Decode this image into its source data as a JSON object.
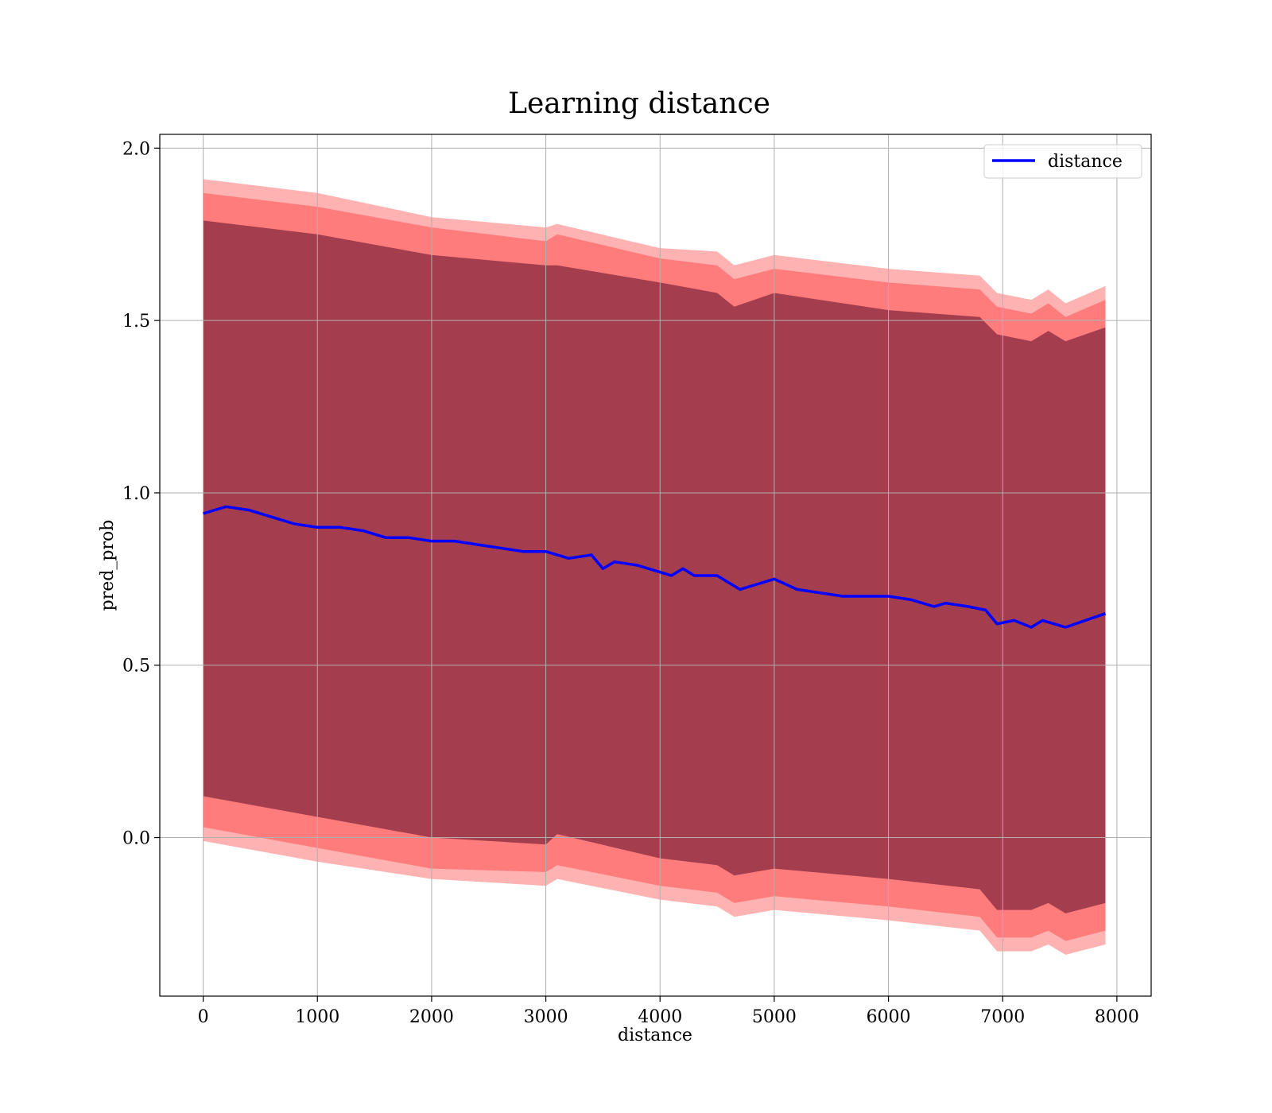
{
  "chart_data": {
    "type": "line",
    "title": "Learning distance",
    "xlabel": "distance",
    "ylabel": "pred_prob",
    "xlim": [
      -380,
      8300
    ],
    "ylim": [
      -0.46,
      2.04
    ],
    "x_ticks": [
      0,
      1000,
      2000,
      3000,
      4000,
      5000,
      6000,
      7000,
      8000
    ],
    "y_ticks": [
      0.0,
      0.5,
      1.0,
      1.5,
      2.0
    ],
    "x_tick_labels": [
      "0",
      "1000",
      "2000",
      "3000",
      "4000",
      "5000",
      "6000",
      "7000",
      "8000"
    ],
    "y_tick_labels": [
      "0.0",
      "0.5",
      "1.0",
      "1.5",
      "2.0"
    ],
    "grid": true,
    "legend": {
      "position": "top-right",
      "entries": [
        "distance"
      ]
    },
    "series": [
      {
        "name": "distance",
        "color": "#0000ff",
        "x": [
          0,
          200,
          400,
          600,
          800,
          1000,
          1200,
          1400,
          1600,
          1800,
          2000,
          2200,
          2400,
          2600,
          2800,
          3000,
          3200,
          3400,
          3500,
          3600,
          3800,
          4000,
          4100,
          4200,
          4300,
          4500,
          4600,
          4700,
          4800,
          5000,
          5200,
          5400,
          5600,
          5800,
          6000,
          6200,
          6400,
          6500,
          6700,
          6850,
          6950,
          7100,
          7250,
          7350,
          7550,
          7900
        ],
        "y": [
          0.94,
          0.96,
          0.95,
          0.93,
          0.91,
          0.9,
          0.9,
          0.89,
          0.87,
          0.87,
          0.86,
          0.86,
          0.85,
          0.84,
          0.83,
          0.83,
          0.81,
          0.82,
          0.78,
          0.8,
          0.79,
          0.77,
          0.76,
          0.78,
          0.76,
          0.76,
          0.74,
          0.72,
          0.73,
          0.75,
          0.72,
          0.71,
          0.7,
          0.7,
          0.7,
          0.69,
          0.67,
          0.68,
          0.67,
          0.66,
          0.62,
          0.63,
          0.61,
          0.63,
          0.61,
          0.65
        ]
      }
    ],
    "bands": [
      {
        "color": "#ff0000",
        "opacity": 0.3,
        "x": [
          0,
          1000,
          2000,
          3000,
          3100,
          4000,
          4500,
          4650,
          5000,
          6000,
          6800,
          6950,
          7250,
          7400,
          7550,
          7900
        ],
        "upper": [
          1.91,
          1.87,
          1.8,
          1.77,
          1.78,
          1.71,
          1.7,
          1.66,
          1.69,
          1.65,
          1.63,
          1.58,
          1.56,
          1.59,
          1.55,
          1.6
        ],
        "lower": [
          -0.01,
          -0.07,
          -0.12,
          -0.14,
          -0.12,
          -0.18,
          -0.2,
          -0.23,
          -0.21,
          -0.24,
          -0.27,
          -0.33,
          -0.33,
          -0.31,
          -0.34,
          -0.31
        ]
      },
      {
        "color": "#ff0000",
        "opacity": 0.3,
        "x": [
          0,
          1000,
          2000,
          3000,
          3100,
          4000,
          4500,
          4650,
          5000,
          6000,
          6800,
          6950,
          7250,
          7400,
          7550,
          7900
        ],
        "upper": [
          1.87,
          1.83,
          1.77,
          1.73,
          1.75,
          1.68,
          1.66,
          1.62,
          1.65,
          1.61,
          1.59,
          1.54,
          1.52,
          1.55,
          1.51,
          1.56
        ],
        "lower": [
          0.03,
          -0.03,
          -0.09,
          -0.1,
          -0.08,
          -0.14,
          -0.16,
          -0.19,
          -0.17,
          -0.2,
          -0.23,
          -0.29,
          -0.29,
          -0.27,
          -0.3,
          -0.27
        ]
      },
      {
        "color": "#5a0a28",
        "opacity": 0.55,
        "x": [
          0,
          1000,
          2000,
          3000,
          3100,
          4000,
          4500,
          4650,
          5000,
          6000,
          6800,
          6950,
          7250,
          7400,
          7550,
          7900
        ],
        "upper": [
          1.79,
          1.75,
          1.69,
          1.66,
          1.66,
          1.61,
          1.58,
          1.54,
          1.58,
          1.53,
          1.51,
          1.46,
          1.44,
          1.47,
          1.44,
          1.48
        ],
        "lower": [
          0.12,
          0.06,
          0.0,
          -0.02,
          0.01,
          -0.06,
          -0.08,
          -0.11,
          -0.09,
          -0.12,
          -0.15,
          -0.21,
          -0.21,
          -0.19,
          -0.22,
          -0.19
        ]
      }
    ]
  }
}
